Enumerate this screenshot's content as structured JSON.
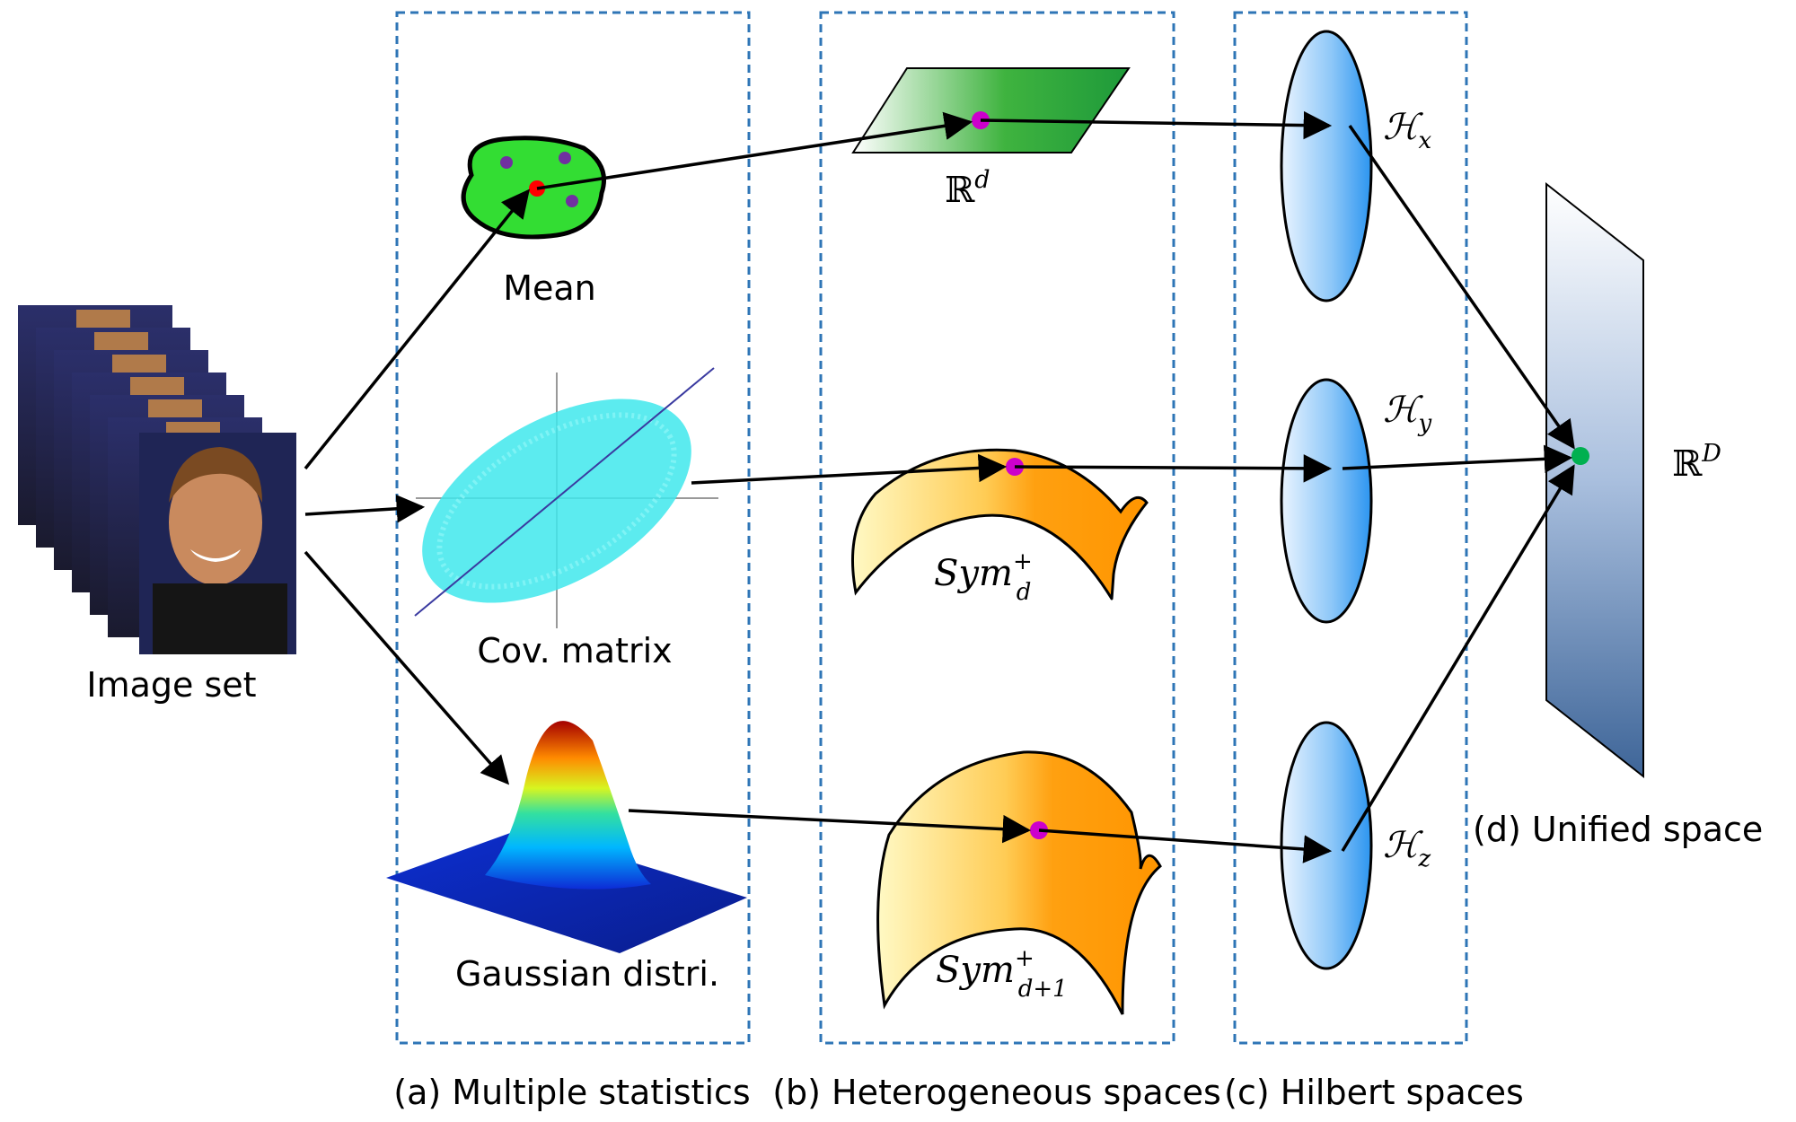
{
  "image_set": {
    "label": "Image set"
  },
  "statistics": {
    "mean": "Mean",
    "cov": "Cov. matrix",
    "gaussian": "Gaussian distri."
  },
  "spaces": {
    "rd": {
      "base": "ℝ",
      "sup": "d"
    },
    "sym_d": {
      "base": "Sym",
      "sup": "+",
      "sub": "d"
    },
    "sym_d1": {
      "base": "Sym",
      "sup": "+",
      "sub": "d+1"
    }
  },
  "hilbert": {
    "hx": {
      "base": "ℋ",
      "sub": "x"
    },
    "hy": {
      "base": "ℋ",
      "sub": "y"
    },
    "hz": {
      "base": "ℋ",
      "sub": "z"
    }
  },
  "unified": {
    "base": "ℝ",
    "sup": "D",
    "label": "(d) Unified space"
  },
  "captions": {
    "a": "(a) Multiple statistics",
    "b": "(b) Heterogeneous spaces",
    "c": "(c) Hilbert spaces"
  },
  "colors": {
    "panel_border": "#2e75b6",
    "arrow": "#000000",
    "point_magenta": "#cc00cc",
    "point_red": "#ff0000",
    "point_purple": "#7030a0",
    "point_green": "#00b050",
    "blob_green": "#33dd33",
    "cloud_cyan": "#40e8ec"
  }
}
